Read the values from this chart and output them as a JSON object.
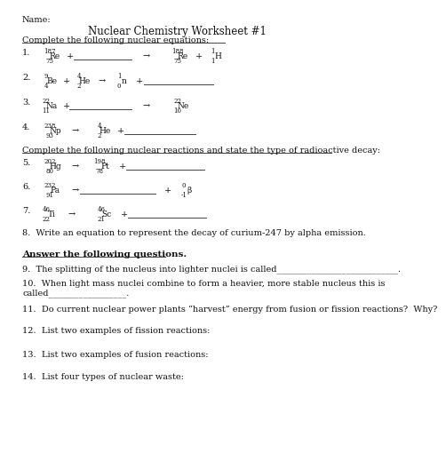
{
  "title": "Nuclear Chemistry Worksheet #1",
  "name_label": "Name:",
  "section1_header": "Complete the following nuclear equations:",
  "section2_header": "Complete the following nuclear reactions and state the type of radioactive decay:",
  "section3_header": "Answer the following questions.",
  "q8": "8.  Write an equation to represent the decay of curium-247 by alpha emission.",
  "q9": "9.  The splitting of the nucleus into lighter nuclei is called____________________________.",
  "q10a": "10.  When light mass nuclei combine to form a heavier, more stable nucleus this is",
  "q10b": "called__________________.",
  "q11": "11.  Do current nuclear power plants “harvest” energy from fusion or fission reactions?  Why?",
  "q12": "12.  List two examples of fission reactions:",
  "q13": "13.  List two examples of fusion reactions:",
  "q14": "14.  List four types of nuclear waste:",
  "background": "#ffffff",
  "text_color": "#111111"
}
